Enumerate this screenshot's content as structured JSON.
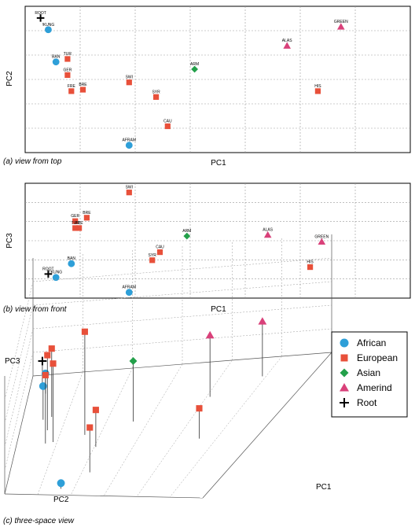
{
  "colors": {
    "African": "#2e9fd8",
    "European": "#e8503a",
    "Asian": "#23a04a",
    "Amerind": "#d9417a",
    "Root": "#000000",
    "grid": "#9a9a9a"
  },
  "panels": {
    "a": {
      "caption": "(a) view from top",
      "xlabel": "PC1",
      "ylabel": "PC2"
    },
    "b": {
      "caption": "(b) view from front",
      "xlabel": "PC1",
      "ylabel": "PC3"
    },
    "c": {
      "caption": "(c) three-space view",
      "xlabel": "PC1",
      "ylabel": "PC2",
      "zlabel": "PC3"
    }
  },
  "legend": [
    {
      "name": "African",
      "marker": "circle"
    },
    {
      "name": "European",
      "marker": "square"
    },
    {
      "name": "Asian",
      "marker": "diamond"
    },
    {
      "name": "Amerind",
      "marker": "triangle"
    },
    {
      "name": "Root",
      "marker": "plus"
    }
  ],
  "chart_data": [
    {
      "type": "scatter",
      "title": "(a) view from top",
      "xlabel": "PC1",
      "ylabel": "PC2",
      "grid": true,
      "points": [
        {
          "label": "ROOT",
          "group": "Root",
          "x": 0.04,
          "y": 0.92
        },
        {
          "label": "!KUNG",
          "group": "African",
          "x": 0.06,
          "y": 0.84
        },
        {
          "label": "BAN",
          "group": "African",
          "x": 0.08,
          "y": 0.62
        },
        {
          "label": "TUR",
          "group": "European",
          "x": 0.11,
          "y": 0.64
        },
        {
          "label": "GER",
          "group": "European",
          "x": 0.11,
          "y": 0.53
        },
        {
          "label": "FRE",
          "group": "European",
          "x": 0.12,
          "y": 0.42
        },
        {
          "label": "BRE",
          "group": "European",
          "x": 0.15,
          "y": 0.43
        },
        {
          "label": "SWI",
          "group": "European",
          "x": 0.27,
          "y": 0.48
        },
        {
          "label": "SYR",
          "group": "European",
          "x": 0.34,
          "y": 0.38
        },
        {
          "label": "CAU",
          "group": "European",
          "x": 0.37,
          "y": 0.18
        },
        {
          "label": "AFRAM",
          "group": "African",
          "x": 0.27,
          "y": 0.05
        },
        {
          "label": "ARM",
          "group": "Asian",
          "x": 0.44,
          "y": 0.57
        },
        {
          "label": "ALAS",
          "group": "Amerind",
          "x": 0.68,
          "y": 0.73
        },
        {
          "label": "GREEN",
          "group": "Amerind",
          "x": 0.82,
          "y": 0.86
        },
        {
          "label": "HIS",
          "group": "European",
          "x": 0.76,
          "y": 0.42
        }
      ]
    },
    {
      "type": "scatter",
      "title": "(b) view from front",
      "xlabel": "PC1",
      "ylabel": "PC3",
      "grid": true,
      "points": [
        {
          "label": "SWI",
          "group": "European",
          "x": 0.27,
          "y": 0.92
        },
        {
          "label": "BRE",
          "group": "European",
          "x": 0.16,
          "y": 0.7
        },
        {
          "label": "GER",
          "group": "European",
          "x": 0.13,
          "y": 0.67
        },
        {
          "label": "TUR",
          "group": "European",
          "x": 0.13,
          "y": 0.61
        },
        {
          "label": "FRE",
          "group": "European",
          "x": 0.14,
          "y": 0.61
        },
        {
          "label": "ARM",
          "group": "Asian",
          "x": 0.42,
          "y": 0.54
        },
        {
          "label": "ALAS",
          "group": "Amerind",
          "x": 0.63,
          "y": 0.55
        },
        {
          "label": "GREEN",
          "group": "Amerind",
          "x": 0.77,
          "y": 0.49
        },
        {
          "label": "CAU",
          "group": "European",
          "x": 0.35,
          "y": 0.4
        },
        {
          "label": "SYR",
          "group": "European",
          "x": 0.33,
          "y": 0.33
        },
        {
          "label": "HIS",
          "group": "European",
          "x": 0.74,
          "y": 0.27
        },
        {
          "label": "BAN",
          "group": "African",
          "x": 0.12,
          "y": 0.3
        },
        {
          "label": "ROOT",
          "group": "Root",
          "x": 0.06,
          "y": 0.21
        },
        {
          "label": "!KUNG",
          "group": "African",
          "x": 0.08,
          "y": 0.18
        },
        {
          "label": "AFRAM",
          "group": "African",
          "x": 0.27,
          "y": 0.05
        }
      ]
    },
    {
      "type": "scatter",
      "title": "(c) three-space view",
      "xlabel": "PC1",
      "ylabel": "PC2",
      "zlabel": "PC3",
      "grid": true
    }
  ]
}
